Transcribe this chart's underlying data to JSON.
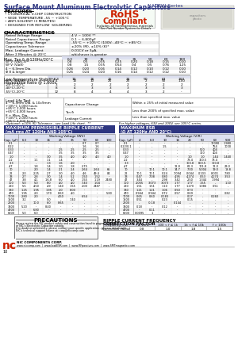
{
  "title_bold": "Surface Mount Aluminum Electrolytic Capacitors",
  "title_series": " NACEW Series",
  "header_color": "#2d3580",
  "bg_color": "#ffffff",
  "features": [
    "CYLINDRICAL V-CHIP CONSTRUCTION",
    "WIDE TEMPERATURE -55 ~ +105°C",
    "ANTI-SOLVENT (3 MINUTES)",
    "DESIGNED FOR REFLOW  SOLDERING"
  ],
  "char_rows": [
    [
      "Rated Voltage Range",
      "4 V ~ 100V **"
    ],
    [
      "Rated Capacitance Range",
      "0.1 ~ 6,800μF"
    ],
    [
      "Operating Temp. Range",
      "-55°C ~ +105°C (100V: -40°C ~ +85°C)"
    ],
    [
      "Capacitance Tolerance",
      "±20% (M), ±10% (K)*"
    ],
    [
      "Max. Leakage Current",
      "0.01CV or 3μA,"
    ],
    [
      "After 2 Minutes @ 20°C",
      "whichever is greater"
    ]
  ],
  "tan_cols": [
    "6.3",
    "10",
    "16",
    "25",
    "35",
    "50",
    "63",
    "100"
  ],
  "tan_data": [
    [
      "W°V (V≤6.3)",
      "0.8",
      "0.5",
      "0.35",
      "0.25",
      "0.20",
      "0.18",
      "0.15",
      "0.10"
    ],
    [
      "W°V (V≥8)",
      "0.8",
      "1.5",
      "0.35",
      "0.54",
      "0.4",
      "0.5",
      "0.76",
      "1.25"
    ],
    [
      "4 ~ 6.3mm Dia.",
      "0.26",
      "0.20",
      "0.16",
      "0.14",
      "0.12",
      "0.10",
      "0.12",
      "0.10"
    ],
    [
      "Φ 8 & larger",
      "0.26",
      "0.24",
      "0.20",
      "0.16",
      "0.14",
      "0.12",
      "0.12",
      "0.10"
    ]
  ],
  "low_cols": [
    "6.3",
    "10",
    "16",
    "25",
    "35",
    "50",
    "63",
    "100"
  ],
  "low_data": [
    [
      "W°V (V≤16)",
      "4",
      "10",
      "10",
      "25",
      "25",
      "2",
      "50",
      "1.00"
    ],
    [
      "-25°C/-20°C",
      "3",
      "2",
      "2",
      "2",
      "2",
      "2",
      "2",
      "2"
    ],
    [
      "-40°C/-20°C",
      "8",
      "4",
      "3",
      "3",
      "3",
      "3",
      "3",
      "3"
    ],
    [
      "-55°C/-20°C",
      "12",
      "8",
      "4",
      "4",
      "4",
      "3",
      "2",
      "-"
    ]
  ],
  "ripple_cols": [
    "6.3",
    "10",
    "16",
    "25",
    "35",
    "50",
    "63",
    "100"
  ],
  "ripple_data": [
    [
      "0.1",
      "-",
      "-",
      "-",
      "-",
      "-",
      "0.7",
      "0.7",
      "-"
    ],
    [
      "0.22",
      "-",
      "-",
      "-",
      "-",
      "-",
      "1.6",
      "1.6",
      "-"
    ],
    [
      "0.33",
      "-",
      "-",
      "-",
      "2.5",
      "2.5",
      "2.5",
      "2.5",
      "-"
    ],
    [
      "0.47",
      "-",
      "-",
      "-",
      "3.5",
      "3.5",
      "3.5",
      "3.5",
      "-"
    ],
    [
      "1.0",
      "-",
      "-",
      "3.0",
      "3.5",
      "4.0",
      "4.0",
      "4.0",
      "4.0"
    ],
    [
      "2.2",
      "-",
      "1.1",
      "1.1",
      "1.4",
      "-",
      "-",
      "-",
      "-"
    ],
    [
      "3.3",
      "-",
      "-",
      "1.3",
      "1.6",
      "2.0",
      "-",
      "-",
      "-"
    ],
    [
      "4.7",
      "-",
      "1.8",
      "1.4",
      "1.0",
      "1.8",
      "2.75",
      "-",
      "-"
    ],
    [
      "10",
      "-",
      "2.0",
      "1.4",
      "2.1",
      "2.4",
      "2.64",
      "2.64",
      "65"
    ],
    [
      "22",
      "2.0",
      "2.25",
      "2.7",
      "3.0",
      "4.0",
      "4.6",
      "49.4",
      "84"
    ],
    [
      "33",
      "2.7",
      "2.8",
      "3.0",
      "1.4",
      "5.2",
      "1.50",
      "1.52",
      "-"
    ],
    [
      "47",
      "3.8",
      "4.1",
      "1.6.8",
      "6.0",
      "4.0",
      "1.55",
      "1.19",
      "2480"
    ],
    [
      "100",
      "5.0",
      "5.0",
      "8.0",
      "4.0",
      "4.0",
      "7.40",
      "1.04",
      "-"
    ],
    [
      "220",
      "5.5",
      "4.50",
      "4.9",
      "1.40",
      "1.55",
      "2.00",
      "2487",
      "-"
    ],
    [
      "330",
      "1.25",
      "1.95",
      "1.95",
      "2.0",
      "8.00",
      "-",
      "-",
      "-"
    ],
    [
      "470",
      "1.95",
      "2.0",
      "1.70",
      "8.60",
      "4.0",
      "-",
      "-",
      "5.80"
    ],
    [
      "1000",
      "2.80",
      "2.0",
      "-",
      "4.50",
      "-",
      "6.54",
      "-",
      "-"
    ],
    [
      "1500",
      "3.2",
      "-",
      "5.0",
      "-",
      "7.40",
      "-",
      "-",
      "-"
    ],
    [
      "2200",
      "-",
      "10.0",
      "6.0",
      "8.65",
      "-",
      "-",
      "-",
      "-"
    ],
    [
      "3300",
      "5.20",
      "-",
      "8.40",
      "-",
      "-",
      "-",
      "-",
      "-"
    ],
    [
      "4700",
      "-",
      "6.80",
      "-",
      "-",
      "-",
      "-",
      "-",
      "-"
    ],
    [
      "6800",
      "5.0",
      "6.0",
      "-",
      "-",
      "-",
      "-",
      "-",
      "-"
    ]
  ],
  "esr_cols": [
    "4",
    "6.3",
    "10",
    "16",
    "25",
    "50",
    "63",
    "500"
  ],
  "esr_data": [
    [
      "0.1",
      "-",
      "-",
      "-",
      "-",
      "-",
      "-",
      "10000",
      "1.980"
    ],
    [
      "0.22/0.1",
      "-",
      "-",
      "1.5",
      "-",
      "-",
      "-",
      "754",
      "1000"
    ],
    [
      "0.33",
      "-",
      "-",
      "-",
      "-",
      "-",
      "500",
      "404",
      "-"
    ],
    [
      "0.47",
      "-",
      "-",
      "-",
      "-",
      "-",
      "300",
      "404",
      "-"
    ],
    [
      "1.0",
      "-",
      "-",
      "-",
      "-",
      "1.0",
      "1.0",
      "1.44",
      "1.440"
    ],
    [
      "2.2",
      "-",
      "-",
      "-",
      "-",
      "73.4",
      "300.5",
      "73.4",
      "-"
    ],
    [
      "3.3",
      "-",
      "-",
      "-",
      "-",
      "100.8",
      "600.5",
      "100.8",
      "-"
    ],
    [
      "4.7",
      "-",
      "-",
      "-",
      "11.8",
      "62.3",
      "101.8",
      "12.0",
      "23.0"
    ],
    [
      "10",
      "-",
      "10.1",
      "10.1",
      "14.7",
      "7.00",
      "5.004",
      "19.0",
      "18.8"
    ],
    [
      "22",
      "10.1",
      "10.1",
      "0.24",
      "7.094",
      "0.044",
      "0.103",
      "8.001",
      "7.80"
    ],
    [
      "33",
      "0.47",
      "7.08",
      "0.80",
      "4.95",
      "4.274",
      "0.53",
      "4.274",
      "3.53"
    ],
    [
      "47",
      "3.44",
      "-",
      "2.98",
      "3.42",
      "2.50",
      "1.344",
      "1.994",
      "-"
    ],
    [
      "100",
      "2.055",
      "3.073",
      "3.073",
      "1.77",
      "1.77",
      "1.55",
      "-",
      "1.10"
    ],
    [
      "220",
      "1.51",
      "1.51",
      "1.10",
      "1.77",
      "1.270",
      "1.086",
      "0.51",
      "-"
    ],
    [
      "330",
      "1.21",
      "1.21",
      "1.06",
      "0.50",
      "0.73",
      "-",
      "-",
      "-"
    ],
    [
      "470",
      "0.944",
      "0.944",
      "0.72",
      "0.57",
      "0.69",
      "-",
      "-",
      "0.82"
    ],
    [
      "1000",
      "0.65",
      "0.60",
      "0.183",
      "-",
      "0.27",
      "-",
      "0.260",
      "-"
    ],
    [
      "1500",
      "0.51",
      "-",
      "0.23",
      "-",
      "0.15",
      "-",
      "-",
      "-"
    ],
    [
      "2200",
      "-",
      "-0.18",
      "-",
      "0.144",
      "-",
      "-",
      "-",
      "-"
    ],
    [
      "3300",
      "0.18",
      "-",
      "0.12",
      "-",
      "-",
      "-",
      "-",
      "-"
    ],
    [
      "4700",
      "-",
      "0.11",
      "-",
      "-",
      "-",
      "-",
      "-",
      "-"
    ],
    [
      "6800",
      "0.0095",
      "1",
      "-",
      "-",
      "-",
      "-",
      "-",
      "-"
    ]
  ],
  "freq_cols": [
    "Frequency (Hz)",
    "f ≤ 1kHz",
    "100 < f ≤ 1k",
    "1k < f ≤ 10k",
    "f > 100k"
  ],
  "freq_vals": [
    "Correction Factor",
    "0.8",
    "1.0",
    "1.8",
    "1.5"
  ]
}
